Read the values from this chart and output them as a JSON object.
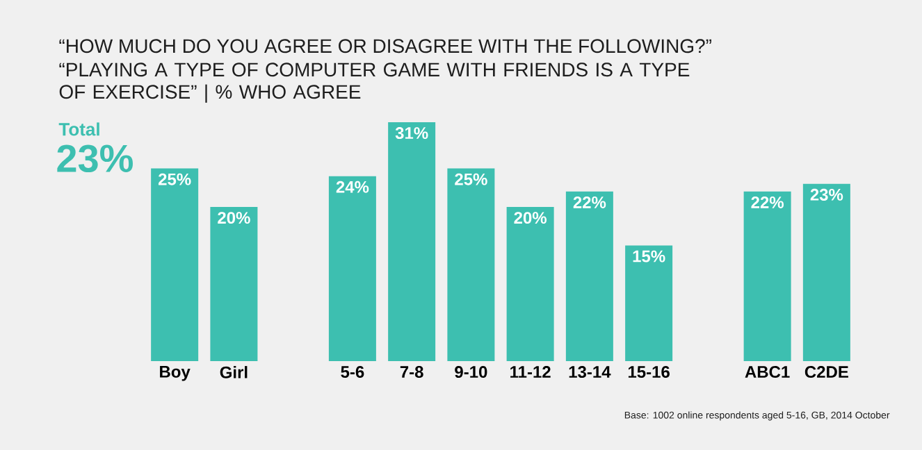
{
  "chart_data": {
    "type": "bar",
    "title": "“HOW MUCH DO YOU AGREE OR DISAGREE WITH THE FOLLOWING?”",
    "subtitle": "“PLAYING A TYPE OF COMPUTER GAME WITH FRIENDS IS A TYPE OF EXERCISE” | % WHO AGREE",
    "categories": [
      "Boy",
      "Girl",
      null,
      "5-6",
      "7-8",
      "9-10",
      "11-12",
      "13-14",
      "15-16",
      null,
      "ABC1",
      "C2DE"
    ],
    "values": [
      25,
      20,
      null,
      24,
      31,
      25,
      20,
      22,
      15,
      null,
      22,
      23
    ],
    "value_labels": [
      "25%",
      "20%",
      null,
      "24%",
      "31%",
      "25%",
      "20%",
      "22%",
      "15%",
      null,
      "22%",
      "23%"
    ],
    "color": "#3dbfb0",
    "annotations": [
      "Total",
      "23%",
      "Base: 1002 online respondents aged 5-16, GB, 2014 October"
    ]
  }
}
